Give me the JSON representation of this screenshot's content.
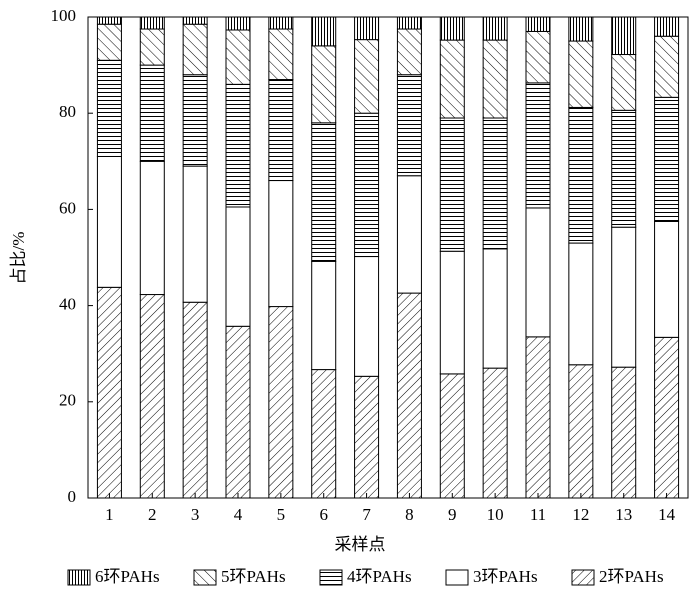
{
  "chart_data": {
    "type": "stacked-bar",
    "xlabel": "采样点",
    "ylabel": "占比/%",
    "categories": [
      "1",
      "2",
      "3",
      "4",
      "5",
      "6",
      "7",
      "8",
      "9",
      "10",
      "11",
      "12",
      "13",
      "14"
    ],
    "ylim": [
      0,
      100
    ],
    "yticks": [
      0,
      20,
      40,
      60,
      80,
      100
    ],
    "series": [
      {
        "name": "2环PAHs",
        "pattern": "slash",
        "values": [
          43.8,
          42.3,
          40.7,
          35.7,
          39.8,
          26.7,
          25.3,
          42.6,
          25.8,
          27.0,
          33.5,
          27.7,
          27.2,
          33.4
        ]
      },
      {
        "name": "3环PAHs",
        "pattern": "none",
        "values": [
          27.2,
          27.7,
          28.3,
          24.8,
          26.2,
          22.5,
          24.9,
          24.4,
          25.5,
          24.8,
          26.8,
          25.3,
          29.1,
          24.1
        ]
      },
      {
        "name": "4环PAHs",
        "pattern": "horizontal",
        "values": [
          20.0,
          20.0,
          19.0,
          25.5,
          21.0,
          28.8,
          29.8,
          21.0,
          27.7,
          27.2,
          26.0,
          28.2,
          24.3,
          25.8
        ]
      },
      {
        "name": "5环PAHs",
        "pattern": "backslash",
        "values": [
          7.5,
          7.5,
          10.5,
          11.3,
          10.5,
          16.0,
          15.3,
          9.5,
          16.2,
          16.2,
          10.7,
          13.8,
          11.6,
          12.7
        ]
      },
      {
        "name": "6环PAHs",
        "pattern": "vertical",
        "values": [
          1.5,
          2.5,
          1.5,
          2.7,
          2.5,
          6.0,
          4.7,
          2.5,
          4.8,
          4.8,
          3.0,
          5.0,
          7.8,
          4.0
        ]
      }
    ]
  }
}
